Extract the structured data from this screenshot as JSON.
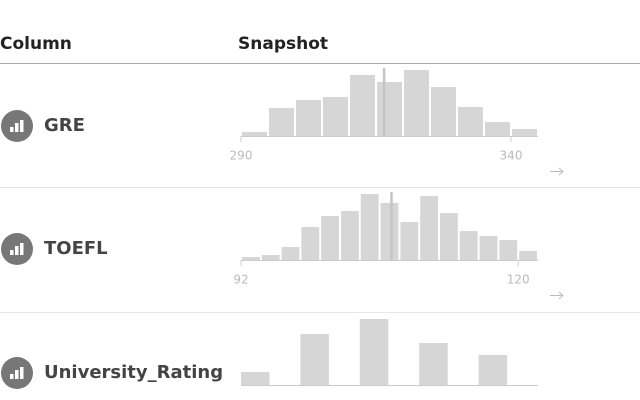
{
  "header": {
    "column": "Column",
    "snapshot": "Snapshot"
  },
  "rows": [
    {
      "name": "GRE",
      "histogram": {
        "type": "histogram",
        "counts": [
          4,
          28,
          36,
          39,
          61,
          54,
          66,
          49,
          29,
          14,
          7
        ],
        "xlim": [
          290,
          345
        ],
        "xticks": [
          290,
          340
        ],
        "mean": 316.5
      }
    },
    {
      "name": "TOEFL",
      "histogram": {
        "type": "histogram",
        "counts": [
          3,
          5,
          13,
          33,
          44,
          49,
          66,
          57,
          38,
          64,
          47,
          29,
          24,
          20,
          9
        ],
        "xlim": [
          92,
          122
        ],
        "xticks": [
          92,
          120
        ],
        "mean": 107.2
      }
    },
    {
      "name": "University_Rating",
      "histogram": {
        "type": "bar",
        "counts": [
          13,
          51,
          66,
          42,
          30
        ]
      }
    }
  ]
}
